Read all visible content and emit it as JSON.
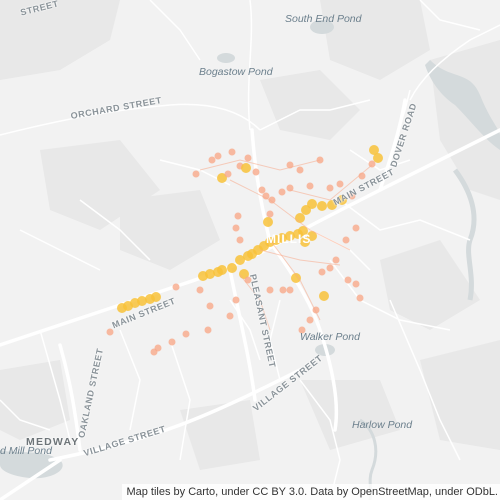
{
  "map": {
    "labels": {
      "street_top": "STREET",
      "orchard": "ORCHARD STREET",
      "dover": "DOVER ROAD",
      "main_ne": "MAIN STREET",
      "main_sw": "MAIN STREET",
      "pleasant": "PLEASANT STREET",
      "village_e": "VILLAGE STREET",
      "village_w": "VILLAGE STREET",
      "oakland": "OAKLAND STREET",
      "medway": "MEDWAY",
      "millis": "MILLIS"
    },
    "water": {
      "south_end_pond": "South End Pond",
      "bogastow_pond": "Bogastow Pond",
      "walker_pond": "Walker Pond",
      "harlow_pond": "Harlow Pond",
      "mill_pond": "d Mill Pond"
    },
    "colors": {
      "background": "#f2f2f2",
      "roads": "#ffffff",
      "land": "#e9e9e9",
      "water": "#d4dadc",
      "heat_outer": "#f7a98a",
      "heat_core": "#f8c23a"
    },
    "attribution": "Map tiles by Carto, under CC BY 3.0. Data by OpenStreetMap, under ODbL."
  }
}
